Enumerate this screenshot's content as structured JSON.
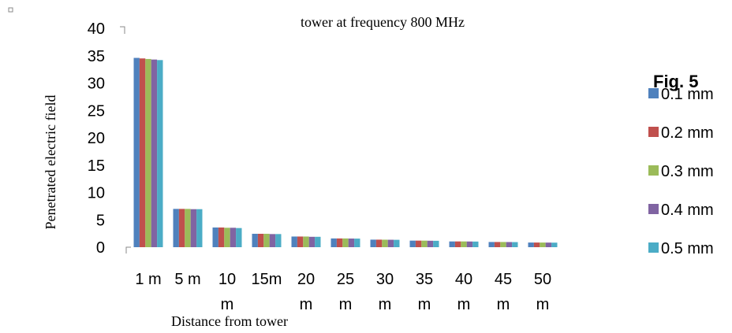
{
  "chart_data": {
    "type": "bar",
    "title": "tower at frequency 800 MHz",
    "figure_label": "Fig. 5",
    "xlabel": "Distance from tower",
    "ylabel": "Penetrated electric field",
    "ylim": [
      0,
      40
    ],
    "yticks": [
      "0",
      "5",
      "10",
      "15",
      "20",
      "25",
      "30",
      "35",
      "40"
    ],
    "categories": [
      "1 m",
      "5 m",
      "10 m",
      "15m",
      "20 m",
      "25 m",
      "30 m",
      "35 m",
      "40 m",
      "45 m",
      "50 m"
    ],
    "category_lines": [
      [
        "1 m"
      ],
      [
        "5 m"
      ],
      [
        "10",
        "m"
      ],
      [
        "15m"
      ],
      [
        "20",
        "m"
      ],
      [
        "25",
        "m"
      ],
      [
        "30",
        "m"
      ],
      [
        "35",
        "m"
      ],
      [
        "40",
        "m"
      ],
      [
        "45",
        "m"
      ],
      [
        "50",
        "m"
      ]
    ],
    "grid": false,
    "legend_position": "right",
    "series": [
      {
        "name": "0.1 mm",
        "color": "#4F81BD",
        "values": [
          34.6,
          7.0,
          3.6,
          2.45,
          1.95,
          1.6,
          1.38,
          1.2,
          1.05,
          0.95,
          0.85
        ]
      },
      {
        "name": "0.2 mm",
        "color": "#C0504D",
        "values": [
          34.5,
          7.0,
          3.6,
          2.45,
          1.95,
          1.6,
          1.38,
          1.2,
          1.05,
          0.95,
          0.85
        ]
      },
      {
        "name": "0.3 mm",
        "color": "#9BBB59",
        "values": [
          34.4,
          7.0,
          3.55,
          2.45,
          1.95,
          1.6,
          1.37,
          1.2,
          1.05,
          0.95,
          0.85
        ]
      },
      {
        "name": "0.4 mm",
        "color": "#8064A2",
        "values": [
          34.3,
          6.95,
          3.55,
          2.4,
          1.9,
          1.58,
          1.36,
          1.18,
          1.04,
          0.94,
          0.84
        ]
      },
      {
        "name": "0.5 mm",
        "color": "#4BACC6",
        "values": [
          34.2,
          6.95,
          3.5,
          2.4,
          1.9,
          1.57,
          1.35,
          1.17,
          1.03,
          0.93,
          0.83
        ]
      }
    ]
  }
}
